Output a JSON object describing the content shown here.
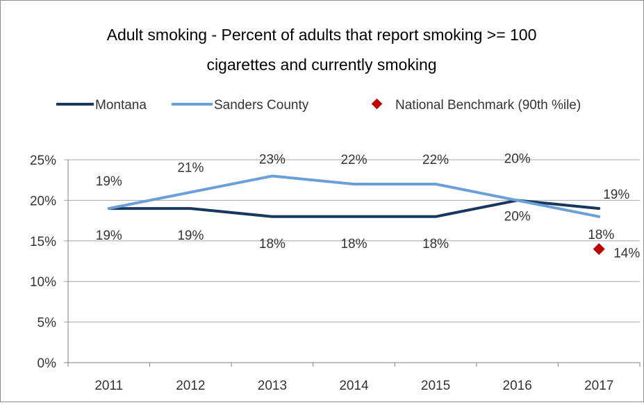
{
  "chart_data": {
    "type": "line",
    "title": "Adult smoking - Percent of adults that report smoking >= 100 cigarettes and currently smoking",
    "title_lines": [
      "Adult smoking - Percent of adults that report smoking >= 100",
      "cigarettes and currently smoking"
    ],
    "categories": [
      "2011",
      "2012",
      "2013",
      "2014",
      "2015",
      "2016",
      "2017"
    ],
    "y_ticks": [
      "0%",
      "5%",
      "10%",
      "15%",
      "20%",
      "25%"
    ],
    "ylim": [
      0,
      25
    ],
    "grid": true,
    "legend_position": "top",
    "series": [
      {
        "name": "Montana",
        "color": "#17375e",
        "values": [
          19,
          19,
          18,
          18,
          18,
          20,
          19
        ],
        "labels": [
          "19%",
          "19%",
          "18%",
          "18%",
          "18%",
          "20%",
          "19%"
        ]
      },
      {
        "name": "Sanders County",
        "color": "#6a9fd8",
        "values": [
          19,
          21,
          23,
          22,
          22,
          20,
          18
        ],
        "labels": [
          "19%",
          "21%",
          "23%",
          "22%",
          "22%",
          "20%",
          "18%"
        ]
      }
    ],
    "benchmark": {
      "name": "National Benchmark (90th %ile)",
      "color": "#c00000",
      "category": "2017",
      "value": 14,
      "label": "14%"
    }
  }
}
